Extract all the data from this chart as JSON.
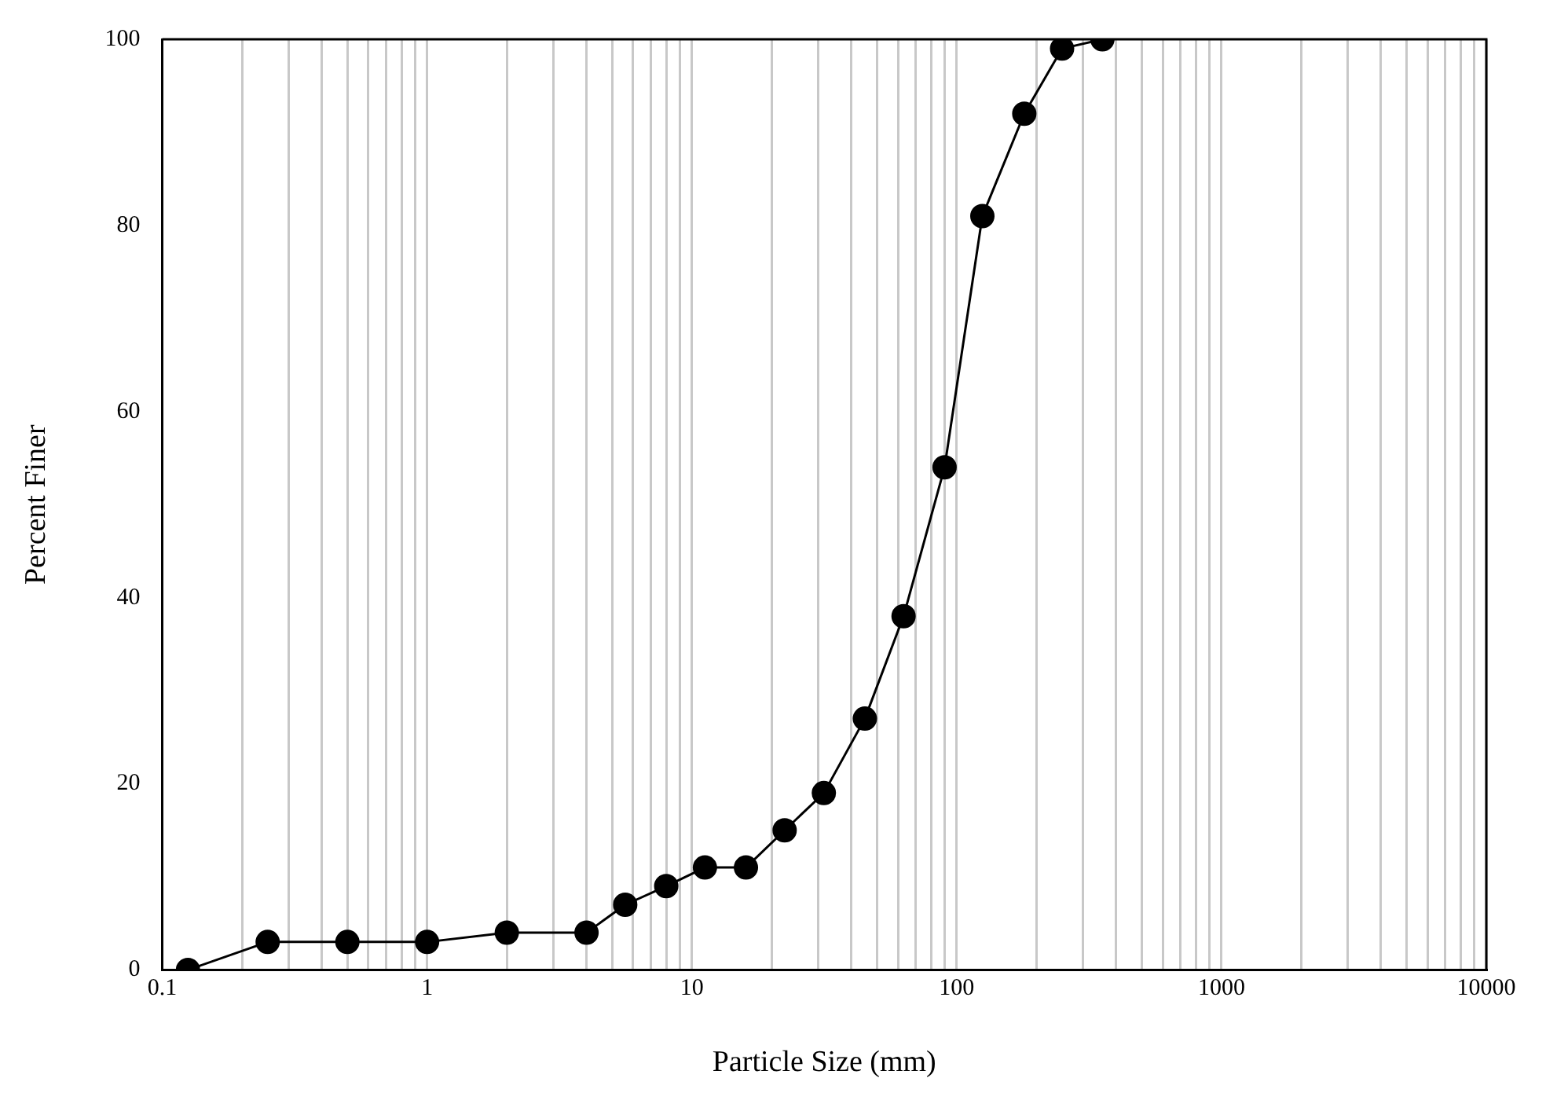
{
  "chart_data": {
    "type": "line",
    "xlabel": "Particle Size (mm)",
    "ylabel": "Percent Finer",
    "x": [
      0.125,
      0.25,
      0.5,
      1,
      2,
      4,
      5.6,
      8,
      11.2,
      16,
      22.4,
      31.5,
      45,
      63,
      90,
      125,
      180,
      250,
      355
    ],
    "series": [
      {
        "color": "#000000",
        "values": [
          0,
          3,
          3,
          3,
          4,
          4,
          7,
          9,
          11,
          11,
          15,
          19,
          27,
          38,
          54,
          81,
          92,
          99,
          100
        ]
      }
    ],
    "log": "x",
    "xlim": [
      0.1,
      10000
    ],
    "xticks": [
      0.1,
      {
        "value": 0.2,
        "label": null
      },
      {
        "value": 0.3,
        "label": null
      },
      {
        "value": 0.4,
        "label": null
      },
      {
        "value": 0.5,
        "label": null
      },
      {
        "value": 0.6,
        "label": null
      },
      {
        "value": 0.7,
        "label": null
      },
      {
        "value": 0.8,
        "label": null
      },
      {
        "value": 0.9,
        "label": null
      },
      1,
      {
        "value": 2,
        "label": null
      },
      {
        "value": 3,
        "label": null
      },
      {
        "value": 4,
        "label": null
      },
      {
        "value": 5,
        "label": null
      },
      {
        "value": 6,
        "label": null
      },
      {
        "value": 7,
        "label": null
      },
      {
        "value": 8,
        "label": null
      },
      {
        "value": 9,
        "label": null
      },
      10,
      {
        "value": 20,
        "label": null
      },
      {
        "value": 30,
        "label": null
      },
      {
        "value": 40,
        "label": null
      },
      {
        "value": 50,
        "label": null
      },
      {
        "value": 60,
        "label": null
      },
      {
        "value": 70,
        "label": null
      },
      {
        "value": 80,
        "label": null
      },
      {
        "value": 90,
        "label": null
      },
      100,
      {
        "value": 200,
        "label": null
      },
      {
        "value": 300,
        "label": null
      },
      {
        "value": 400,
        "label": null
      },
      {
        "value": 500,
        "label": null
      },
      {
        "value": 600,
        "label": null
      },
      {
        "value": 700,
        "label": null
      },
      {
        "value": 800,
        "label": null
      },
      {
        "value": 900,
        "label": null
      },
      1000,
      {
        "value": 2000,
        "label": null
      },
      {
        "value": 3000,
        "label": null
      },
      {
        "value": 4000,
        "label": null
      },
      {
        "value": 5000,
        "label": null
      },
      {
        "value": 6000,
        "label": null
      },
      {
        "value": 7000,
        "label": null
      },
      {
        "value": 8000,
        "label": null
      },
      {
        "value": 9000,
        "label": null
      },
      10000
    ],
    "ylim": [
      0,
      100
    ],
    "yticks": [
      0,
      20,
      40,
      60,
      80,
      100
    ],
    "grid": "x",
    "marker": "circle",
    "line_style": "solid",
    "legend": false
  }
}
